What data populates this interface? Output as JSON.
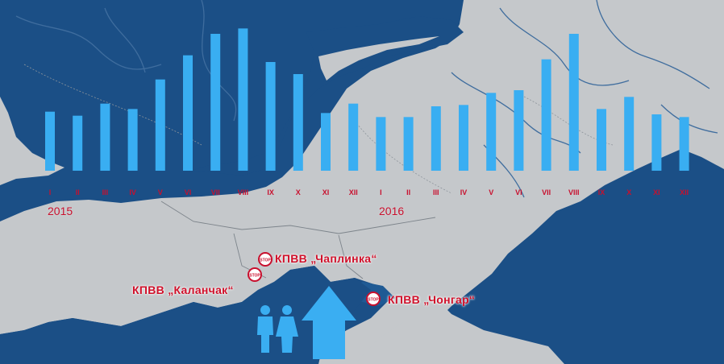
{
  "chart_data": {
    "type": "bar",
    "categories": [
      "I",
      "II",
      "III",
      "IV",
      "V",
      "VI",
      "VII",
      "VIII",
      "IX",
      "X",
      "XI",
      "XII",
      "I",
      "II",
      "III",
      "IV",
      "V",
      "VI",
      "VII",
      "VIII",
      "IX",
      "X",
      "XI",
      "XII"
    ],
    "years": [
      "2015",
      "2016"
    ],
    "values": [
      44,
      41,
      50,
      46,
      68,
      86,
      102,
      106,
      81,
      72,
      43,
      50,
      40,
      40,
      48,
      49,
      58,
      60,
      83,
      102,
      46,
      55,
      42,
      40
    ],
    "title": "",
    "xlabel": "",
    "ylabel": "",
    "ylim": [
      0,
      120
    ],
    "bar_color": "#39aef2"
  },
  "map": {
    "checkpoints": [
      {
        "label": "КПВВ „Чаплинка“",
        "stop": "STOP"
      },
      {
        "label": "КПВВ „Каланчак“",
        "stop": "STOP"
      },
      {
        "label": "КПВВ „Чонгар“",
        "stop": "STOP"
      }
    ],
    "icons": [
      "people-icon",
      "arrow-up-icon"
    ],
    "colors": {
      "land": "#c9cccf",
      "sea": "#1b4f86",
      "label": "#d0102a",
      "accent": "#39aef2"
    }
  }
}
